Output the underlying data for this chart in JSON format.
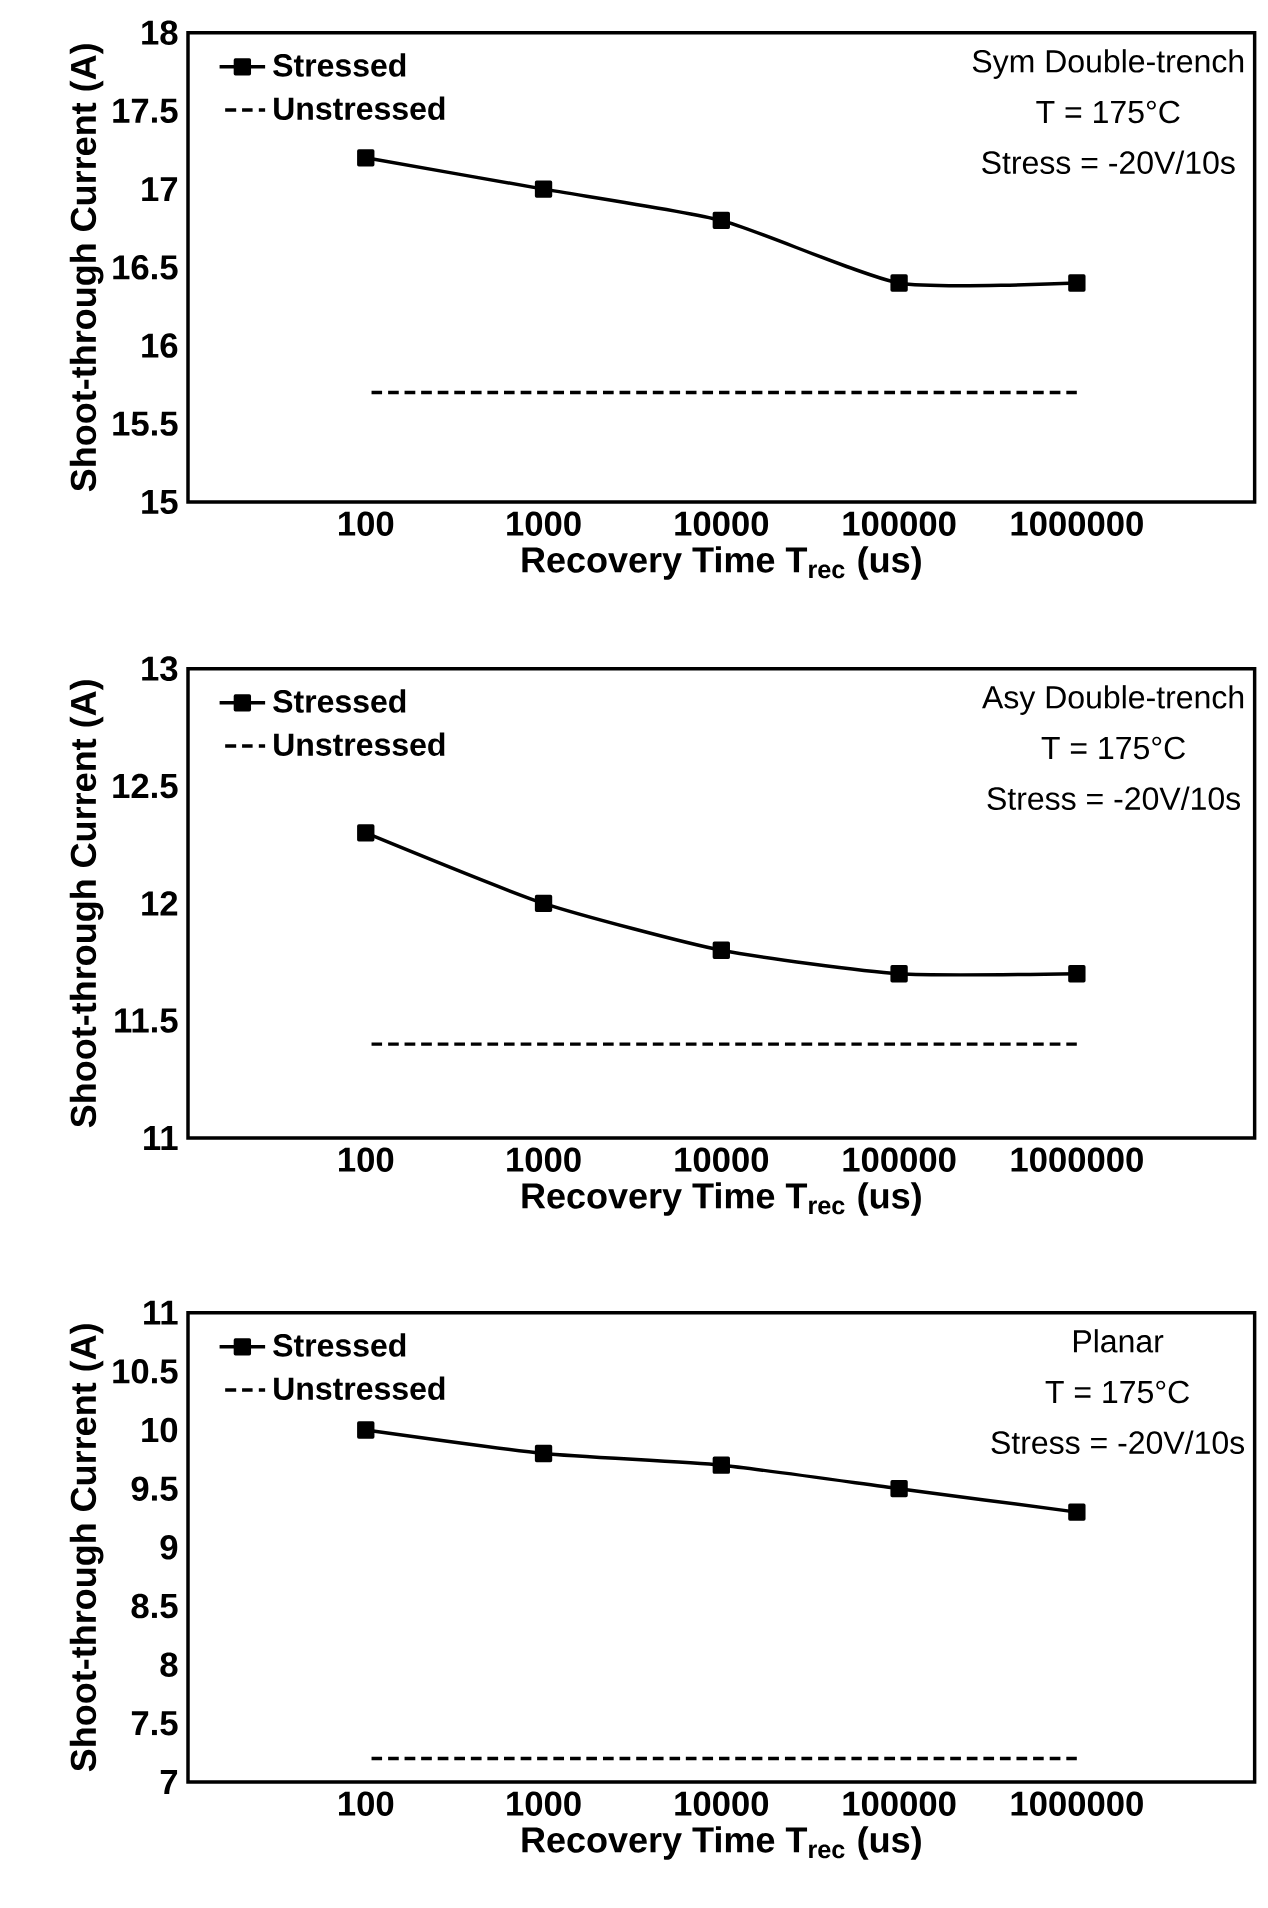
{
  "chart_data": [
    {
      "type": "line",
      "categories": [
        "100",
        "1000",
        "10000",
        "100000",
        "1000000"
      ],
      "xlabel": "Recovery Time T$_{rec}$ (us)",
      "ylabel": "Shoot-through Current (A)",
      "ylim": [
        15,
        18
      ],
      "yticks": [
        15,
        15.5,
        16,
        16.5,
        17,
        17.5,
        18
      ],
      "legend": "top left",
      "grid": false,
      "annotations": [
        "Sym Double-trench",
        "T = 175°C",
        "Stress = -20V/10s"
      ],
      "series": [
        {
          "name": "Stressed",
          "color": "#000000",
          "marker": "square",
          "line_style": "solid",
          "values": [
            17.2,
            17.0,
            16.8,
            16.4,
            16.4
          ]
        },
        {
          "name": "Unstressed",
          "color": "#000000",
          "marker": "none",
          "line_style": "dashed",
          "values": [
            15.7,
            15.7,
            15.7,
            15.7,
            15.7
          ]
        }
      ]
    },
    {
      "type": "line",
      "categories": [
        "100",
        "1000",
        "10000",
        "100000",
        "1000000"
      ],
      "xlabel": "Recovery Time T$_{rec}$ (us)",
      "ylabel": "Shoot-through Current (A)",
      "ylim": [
        11,
        13
      ],
      "yticks": [
        11,
        11.5,
        12,
        12.5,
        13
      ],
      "legend": "top left",
      "grid": false,
      "annotations": [
        "Asy Double-trench",
        "T = 175°C",
        "Stress = -20V/10s"
      ],
      "series": [
        {
          "name": "Stressed",
          "color": "#000000",
          "marker": "square",
          "line_style": "solid",
          "values": [
            12.3,
            12.0,
            11.8,
            11.7,
            11.7
          ]
        },
        {
          "name": "Unstressed",
          "color": "#000000",
          "marker": "none",
          "line_style": "dashed",
          "values": [
            11.4,
            11.4,
            11.4,
            11.4,
            11.4
          ]
        }
      ]
    },
    {
      "type": "line",
      "categories": [
        "100",
        "1000",
        "10000",
        "100000",
        "1000000"
      ],
      "xlabel": "Recovery Time T$_{rec}$ (us)",
      "ylabel": "Shoot-through Current (A)",
      "ylim": [
        7,
        11
      ],
      "yticks": [
        7,
        7.5,
        8,
        8.5,
        9,
        9.5,
        10,
        10.5,
        11
      ],
      "legend": "top left",
      "grid": false,
      "annotations": [
        "Planar",
        "T = 175°C",
        "Stress = -20V/10s"
      ],
      "series": [
        {
          "name": "Stressed",
          "color": "#000000",
          "marker": "square",
          "line_style": "solid",
          "values": [
            10.0,
            9.8,
            9.7,
            9.5,
            9.3
          ]
        },
        {
          "name": "Unstressed",
          "color": "#000000",
          "marker": "none",
          "line_style": "dashed",
          "values": [
            7.2,
            7.2,
            7.2,
            7.2,
            7.2
          ]
        }
      ]
    }
  ]
}
